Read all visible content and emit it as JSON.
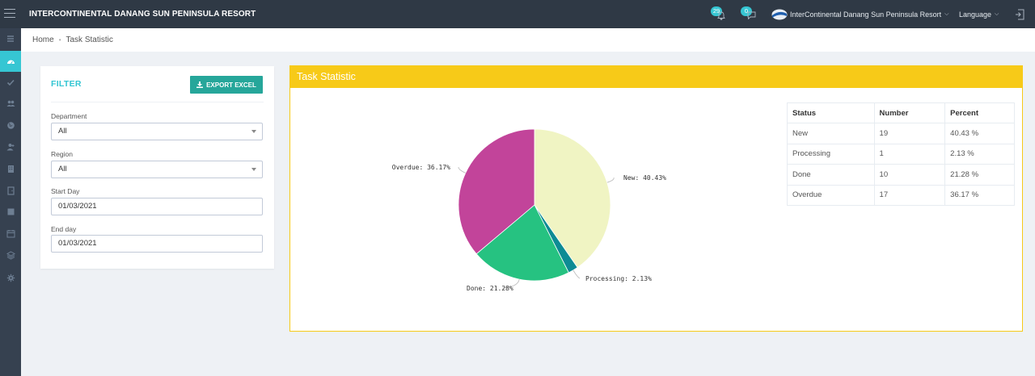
{
  "header": {
    "title": "INTERCONTINENTAL DANANG SUN PENINSULA RESORT",
    "notifications": {
      "count": "29",
      "icon": "bell-icon"
    },
    "messages": {
      "count": "0",
      "icon": "chat-icon"
    },
    "resort_selector": {
      "value": "InterContinental Danang Sun Peninsula Resort"
    },
    "language_label": "Language"
  },
  "sidebar": {
    "items": [
      {
        "icon": "list-icon"
      },
      {
        "icon": "dashboard-icon",
        "active": true
      },
      {
        "icon": "check-icon"
      },
      {
        "icon": "users-icon"
      },
      {
        "icon": "globe-icon"
      },
      {
        "icon": "user-add-icon"
      },
      {
        "icon": "building-icon"
      },
      {
        "icon": "door-icon"
      },
      {
        "icon": "square-icon"
      },
      {
        "icon": "calendar-icon"
      },
      {
        "icon": "layers-icon"
      },
      {
        "icon": "gear-icon"
      }
    ]
  },
  "breadcrumb": {
    "home": "Home",
    "current": "Task Statistic"
  },
  "filter": {
    "title": "FILTER",
    "export_label": "EXPORT EXCEL",
    "department": {
      "label": "Department",
      "value": "All"
    },
    "region": {
      "label": "Region",
      "value": "All"
    },
    "start_day": {
      "label": "Start Day",
      "value": "01/03/2021"
    },
    "end_day": {
      "label": "End day",
      "value": "01/03/2021"
    }
  },
  "stats": {
    "title": "Task Statistic",
    "table": {
      "headers": [
        "Status",
        "Number",
        "Percent"
      ],
      "rows": [
        {
          "status": "New",
          "number": "19",
          "percent": "40.43 %"
        },
        {
          "status": "Processing",
          "number": "1",
          "percent": "2.13 %"
        },
        {
          "status": "Done",
          "number": "10",
          "percent": "21.28 %"
        },
        {
          "status": "Overdue",
          "number": "17",
          "percent": "36.17 %"
        }
      ]
    }
  },
  "chart_data": {
    "type": "pie",
    "categories": [
      "New",
      "Processing",
      "Done",
      "Overdue"
    ],
    "values": [
      40.43,
      2.13,
      21.28,
      36.17
    ],
    "labels": [
      "New: 40.43%",
      "Processing: 2.13%",
      "Done: 21.28%",
      "Overdue: 36.17%"
    ],
    "colors": [
      "#f0f4c3",
      "#0d8b94",
      "#26c281",
      "#c2449a"
    ]
  }
}
